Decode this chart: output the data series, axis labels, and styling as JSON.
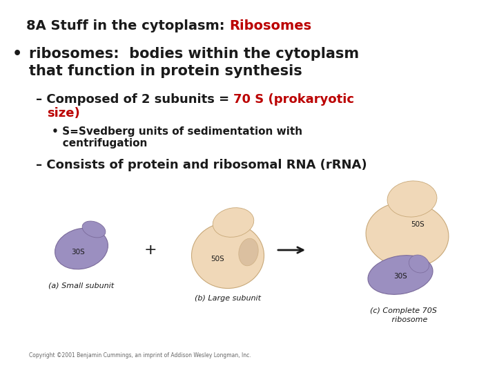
{
  "bg_color": "#ffffff",
  "title_black": "8A Stuff in the cytoplasm: ",
  "title_red": "Ribosomes",
  "title_fontsize": 14,
  "bullet1_text_line1": "ribosomes:  bodies within the cytoplasm",
  "bullet1_text_line2": "that function in protein synthesis",
  "bullet1_fontsize": 15,
  "sub1_black": "– Composed of 2 subunits = ",
  "sub1_red_line1": "70 S (prokaryotic",
  "sub1_red_line2": "size)",
  "sub1_fontsize": 13,
  "sub2_text_line1": "• S=Svedberg units of sedimentation with",
  "sub2_text_line2": "   centrifugation",
  "sub2_fontsize": 11,
  "sub3_text": "– Consists of protein and ribosomal RNA (rRNA)",
  "sub3_fontsize": 13,
  "color_black": "#1a1a1a",
  "color_red": "#bb0000",
  "small_color": "#9b8fc0",
  "large_color": "#f0d8b8",
  "caption_fontsize": 8,
  "copyright_text": "Copyright ©2001 Benjamin Cummings, an imprint of Addison Wesley Longman, Inc.",
  "arrow_color": "#1a1a1a"
}
